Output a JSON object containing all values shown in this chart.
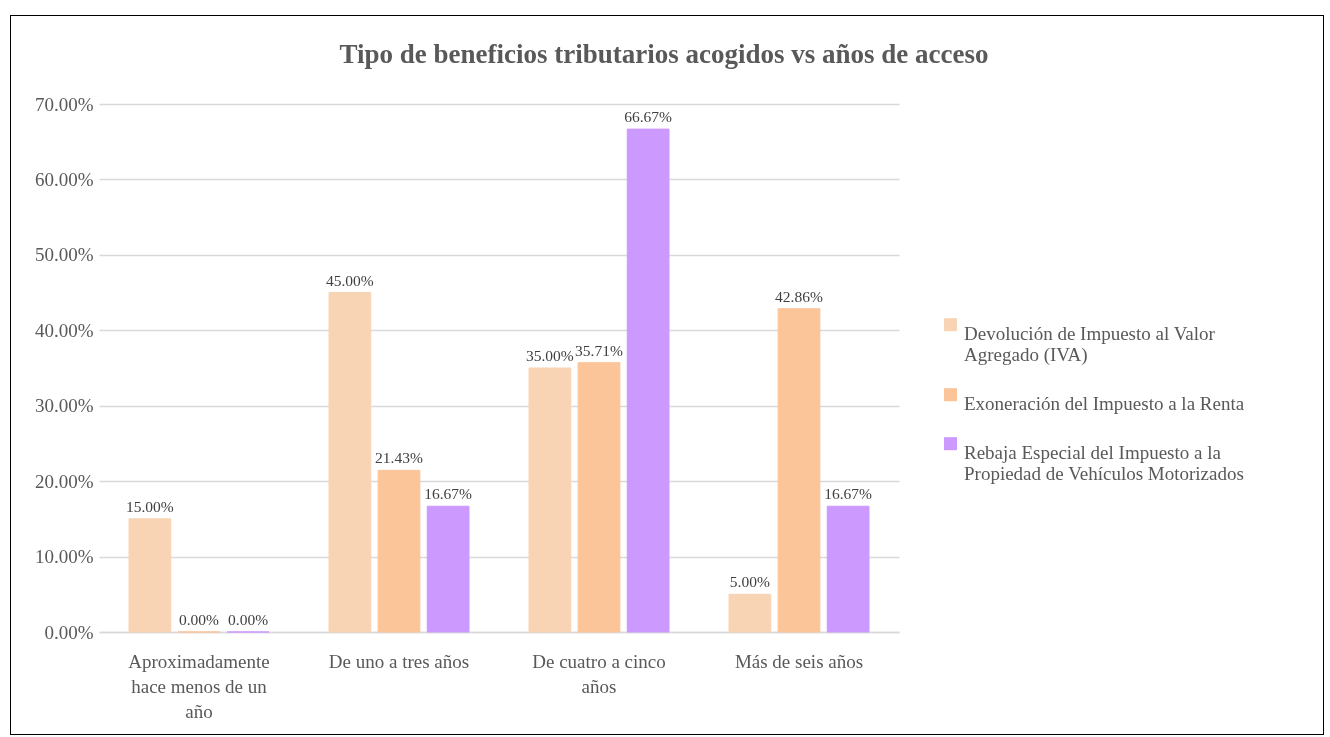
{
  "chart_data": {
    "type": "bar",
    "title": "Tipo de beneficios tributarios acogidos vs años de acceso",
    "categories": [
      "Aproximadamente hace menos de un año",
      "De uno a tres años",
      "De cuatro a cinco años",
      "Más de seis años"
    ],
    "series": [
      {
        "name": "Devolución de Impuesto al Valor Agregado (IVA)",
        "color": "#f8d3b4",
        "values": [
          15,
          45,
          35,
          5
        ],
        "value_labels": [
          "15.00%",
          "45.00%",
          "35.00%",
          "5.00%"
        ]
      },
      {
        "name": "Exoneración del Impuesto a la Renta",
        "color": "#fcc499",
        "values": [
          0,
          21.43,
          35.71,
          42.86
        ],
        "value_labels": [
          "0.00%",
          "21.43%",
          "35.71%",
          "42.86%"
        ]
      },
      {
        "name": "Rebaja Especial del Impuesto a la Propiedad de Vehículos Motorizados",
        "color": "#cc99ff",
        "values": [
          0,
          16.67,
          66.67,
          16.67
        ],
        "value_labels": [
          "0.00%",
          "16.67%",
          "66.67%",
          "16.67%"
        ]
      }
    ],
    "ylim": [
      0,
      70
    ],
    "yticks": [
      {
        "value": 0,
        "label": "0.00%"
      },
      {
        "value": 10,
        "label": "10.00%"
      },
      {
        "value": 20,
        "label": "20.00%"
      },
      {
        "value": 30,
        "label": "30.00%"
      },
      {
        "value": 40,
        "label": "40.00%"
      },
      {
        "value": 50,
        "label": "50.00%"
      },
      {
        "value": 60,
        "label": "60.00%"
      },
      {
        "value": 70,
        "label": "70.00%"
      }
    ],
    "grid": "y",
    "legend": "right"
  }
}
